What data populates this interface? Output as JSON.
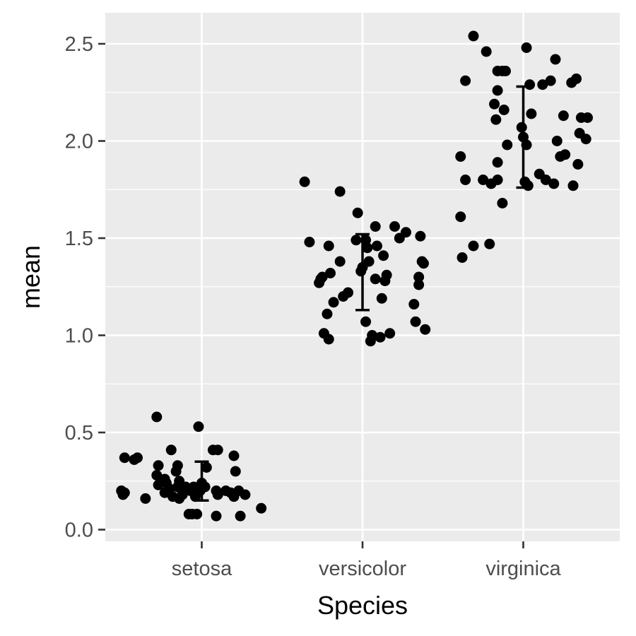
{
  "chart_data": {
    "type": "scatter",
    "xlabel": "Species",
    "ylabel": "mean",
    "categories": [
      "setosa",
      "versicolor",
      "virginica"
    ],
    "ylim": [
      -0.06,
      2.66
    ],
    "yticks": [
      "0.0",
      "0.5",
      "1.0",
      "1.5",
      "2.0",
      "2.5"
    ],
    "grid": true,
    "theme": {
      "panel_bg": "#ebebeb",
      "grid_color": "#ffffff",
      "point_color": "#000000",
      "tick_text_color": "#4d4d4d"
    },
    "points": [
      {
        "x": 0.52,
        "y": 0.37
      },
      {
        "x": 0.58,
        "y": 0.36
      },
      {
        "x": 0.6,
        "y": 0.37
      },
      {
        "x": 0.5,
        "y": 0.2
      },
      {
        "x": 0.52,
        "y": 0.19
      },
      {
        "x": 0.51,
        "y": 0.18
      },
      {
        "x": 0.65,
        "y": 0.16
      },
      {
        "x": 0.72,
        "y": 0.58
      },
      {
        "x": 0.73,
        "y": 0.33
      },
      {
        "x": 0.72,
        "y": 0.28
      },
      {
        "x": 0.77,
        "y": 0.26
      },
      {
        "x": 0.78,
        "y": 0.24
      },
      {
        "x": 0.73,
        "y": 0.23
      },
      {
        "x": 0.77,
        "y": 0.19
      },
      {
        "x": 0.8,
        "y": 0.21
      },
      {
        "x": 0.84,
        "y": 0.3
      },
      {
        "x": 0.85,
        "y": 0.22
      },
      {
        "x": 0.82,
        "y": 0.17
      },
      {
        "x": 0.86,
        "y": 0.16
      },
      {
        "x": 0.87,
        "y": 0.21
      },
      {
        "x": 0.9,
        "y": 0.22
      },
      {
        "x": 0.81,
        "y": 0.41
      },
      {
        "x": 0.85,
        "y": 0.33
      },
      {
        "x": 0.86,
        "y": 0.25
      },
      {
        "x": 0.88,
        "y": 0.18
      },
      {
        "x": 0.93,
        "y": 0.2
      },
      {
        "x": 0.95,
        "y": 0.22
      },
      {
        "x": 0.96,
        "y": 0.17
      },
      {
        "x": 0.92,
        "y": 0.08
      },
      {
        "x": 0.94,
        "y": 0.08
      },
      {
        "x": 0.97,
        "y": 0.08
      },
      {
        "x": 0.99,
        "y": 0.2
      },
      {
        "x": 1.0,
        "y": 0.24
      },
      {
        "x": 1.02,
        "y": 0.22
      },
      {
        "x": 1.03,
        "y": 0.32
      },
      {
        "x": 0.98,
        "y": 0.53
      },
      {
        "x": 1.07,
        "y": 0.41
      },
      {
        "x": 1.1,
        "y": 0.41
      },
      {
        "x": 1.09,
        "y": 0.2
      },
      {
        "x": 1.1,
        "y": 0.18
      },
      {
        "x": 1.15,
        "y": 0.2
      },
      {
        "x": 1.09,
        "y": 0.07
      },
      {
        "x": 1.2,
        "y": 0.38
      },
      {
        "x": 1.21,
        "y": 0.3
      },
      {
        "x": 1.18,
        "y": 0.19
      },
      {
        "x": 1.2,
        "y": 0.17
      },
      {
        "x": 1.23,
        "y": 0.2
      },
      {
        "x": 1.27,
        "y": 0.18
      },
      {
        "x": 1.24,
        "y": 0.07
      },
      {
        "x": 1.37,
        "y": 0.11
      },
      {
        "x": 1.64,
        "y": 1.79
      },
      {
        "x": 1.67,
        "y": 1.48
      },
      {
        "x": 1.73,
        "y": 1.27
      },
      {
        "x": 1.74,
        "y": 1.29
      },
      {
        "x": 1.75,
        "y": 1.3
      },
      {
        "x": 1.76,
        "y": 1.01
      },
      {
        "x": 1.78,
        "y": 1.11
      },
      {
        "x": 1.79,
        "y": 0.98
      },
      {
        "x": 1.79,
        "y": 1.46
      },
      {
        "x": 1.8,
        "y": 1.32
      },
      {
        "x": 1.82,
        "y": 1.17
      },
      {
        "x": 1.86,
        "y": 1.74
      },
      {
        "x": 1.86,
        "y": 1.38
      },
      {
        "x": 1.88,
        "y": 1.2
      },
      {
        "x": 1.91,
        "y": 1.22
      },
      {
        "x": 1.96,
        "y": 1.49
      },
      {
        "x": 1.97,
        "y": 1.63
      },
      {
        "x": 1.99,
        "y": 1.33
      },
      {
        "x": 2.0,
        "y": 1.35
      },
      {
        "x": 2.02,
        "y": 1.07
      },
      {
        "x": 2.02,
        "y": 1.49
      },
      {
        "x": 2.03,
        "y": 1.45
      },
      {
        "x": 2.04,
        "y": 1.38
      },
      {
        "x": 2.05,
        "y": 0.97
      },
      {
        "x": 2.06,
        "y": 1.0
      },
      {
        "x": 2.08,
        "y": 1.29
      },
      {
        "x": 2.08,
        "y": 1.56
      },
      {
        "x": 2.09,
        "y": 1.46
      },
      {
        "x": 2.11,
        "y": 0.99
      },
      {
        "x": 2.12,
        "y": 1.19
      },
      {
        "x": 2.13,
        "y": 1.41
      },
      {
        "x": 2.14,
        "y": 1.28
      },
      {
        "x": 2.15,
        "y": 1.31
      },
      {
        "x": 2.17,
        "y": 1.01
      },
      {
        "x": 2.2,
        "y": 1.56
      },
      {
        "x": 2.23,
        "y": 1.5
      },
      {
        "x": 2.27,
        "y": 1.53
      },
      {
        "x": 2.32,
        "y": 1.16
      },
      {
        "x": 2.33,
        "y": 1.07
      },
      {
        "x": 2.35,
        "y": 1.3
      },
      {
        "x": 2.35,
        "y": 1.26
      },
      {
        "x": 2.36,
        "y": 1.51
      },
      {
        "x": 2.37,
        "y": 1.38
      },
      {
        "x": 2.38,
        "y": 1.37
      },
      {
        "x": 2.39,
        "y": 1.03
      },
      {
        "x": 2.61,
        "y": 1.92
      },
      {
        "x": 2.61,
        "y": 1.61
      },
      {
        "x": 2.62,
        "y": 1.4
      },
      {
        "x": 2.64,
        "y": 2.31
      },
      {
        "x": 2.64,
        "y": 1.8
      },
      {
        "x": 2.69,
        "y": 2.54
      },
      {
        "x": 2.69,
        "y": 1.46
      },
      {
        "x": 2.75,
        "y": 1.8
      },
      {
        "x": 2.77,
        "y": 2.46
      },
      {
        "x": 2.79,
        "y": 1.47
      },
      {
        "x": 2.8,
        "y": 1.78
      },
      {
        "x": 2.82,
        "y": 2.19
      },
      {
        "x": 2.83,
        "y": 2.11
      },
      {
        "x": 2.84,
        "y": 1.8
      },
      {
        "x": 2.84,
        "y": 2.36
      },
      {
        "x": 2.84,
        "y": 2.26
      },
      {
        "x": 2.84,
        "y": 1.89
      },
      {
        "x": 2.87,
        "y": 1.68
      },
      {
        "x": 2.87,
        "y": 2.36
      },
      {
        "x": 2.88,
        "y": 2.16
      },
      {
        "x": 2.89,
        "y": 2.36
      },
      {
        "x": 2.9,
        "y": 1.98
      },
      {
        "x": 2.99,
        "y": 2.07
      },
      {
        "x": 3.0,
        "y": 2.02
      },
      {
        "x": 3.01,
        "y": 1.79
      },
      {
        "x": 3.02,
        "y": 2.48
      },
      {
        "x": 3.02,
        "y": 1.98
      },
      {
        "x": 3.03,
        "y": 1.77
      },
      {
        "x": 3.04,
        "y": 2.29
      },
      {
        "x": 3.05,
        "y": 2.14
      },
      {
        "x": 3.1,
        "y": 1.83
      },
      {
        "x": 3.12,
        "y": 2.29
      },
      {
        "x": 3.14,
        "y": 1.8
      },
      {
        "x": 3.17,
        "y": 2.31
      },
      {
        "x": 3.19,
        "y": 1.78
      },
      {
        "x": 3.2,
        "y": 2.42
      },
      {
        "x": 3.21,
        "y": 2.0
      },
      {
        "x": 3.23,
        "y": 1.92
      },
      {
        "x": 3.25,
        "y": 2.13
      },
      {
        "x": 3.26,
        "y": 1.93
      },
      {
        "x": 3.3,
        "y": 2.3
      },
      {
        "x": 3.31,
        "y": 1.77
      },
      {
        "x": 3.33,
        "y": 2.32
      },
      {
        "x": 3.34,
        "y": 1.88
      },
      {
        "x": 3.35,
        "y": 2.04
      },
      {
        "x": 3.36,
        "y": 2.12
      },
      {
        "x": 3.39,
        "y": 2.01
      },
      {
        "x": 3.4,
        "y": 2.12
      }
    ],
    "error_bars": [
      {
        "category": "setosa",
        "low": 0.15,
        "high": 0.35
      },
      {
        "category": "versicolor",
        "low": 1.13,
        "high": 1.52
      },
      {
        "category": "virginica",
        "low": 1.76,
        "high": 2.28
      }
    ]
  }
}
